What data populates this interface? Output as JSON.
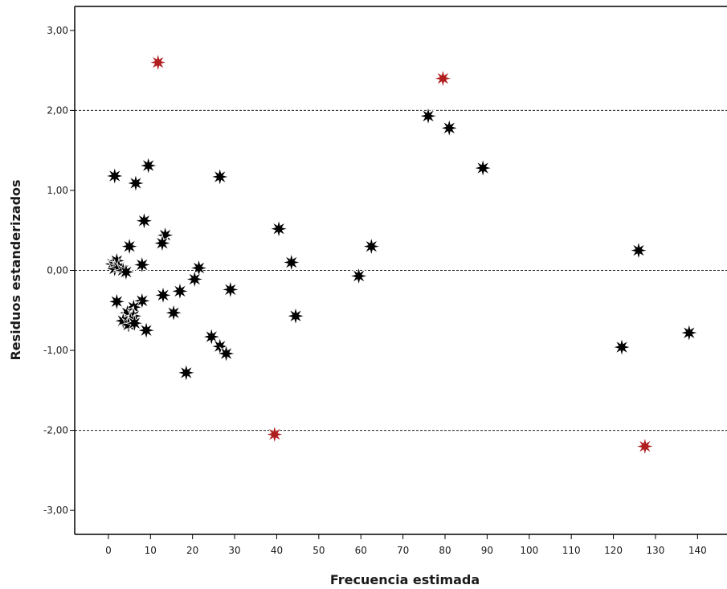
{
  "chart_data": {
    "type": "scatter",
    "title": "",
    "xlabel": "Frecuencia estimada",
    "ylabel": "Residuos estanderizados",
    "xlim": [
      -8,
      147
    ],
    "ylim": [
      -3.3,
      3.3
    ],
    "x_ticks": [
      0,
      10,
      20,
      30,
      40,
      50,
      60,
      70,
      80,
      90,
      100,
      110,
      120,
      130,
      140
    ],
    "x_tick_labels": [
      "0",
      "10",
      "20",
      "30",
      "40",
      "50",
      "60",
      "70",
      "80",
      "90",
      "100",
      "110",
      "120",
      "130",
      "140"
    ],
    "y_ticks": [
      -3,
      -2,
      -1,
      0,
      1,
      2,
      3
    ],
    "y_tick_labels": [
      "-3,00",
      "-2,00",
      "-1,00",
      "0,00",
      "1,00",
      "2,00",
      "3,00"
    ],
    "reference_lines": [
      2,
      0,
      -2
    ],
    "grid": false,
    "marker": "star",
    "colors": {
      "normal": "#000000",
      "outlier": "#b01e1e"
    },
    "series": [
      {
        "name": "",
        "color": "#000000",
        "points": [
          {
            "x": 1.5,
            "y": 1.18
          },
          {
            "x": 6.5,
            "y": 1.09
          },
          {
            "x": 9.5,
            "y": 1.31
          },
          {
            "x": 26.5,
            "y": 1.17
          },
          {
            "x": 8.5,
            "y": 0.62
          },
          {
            "x": 13.5,
            "y": 0.44
          },
          {
            "x": 12.8,
            "y": 0.34
          },
          {
            "x": 5.0,
            "y": 0.3
          },
          {
            "x": 1.0,
            "y": 0.08
          },
          {
            "x": 2.0,
            "y": 0.12
          },
          {
            "x": 1.5,
            "y": 0.02
          },
          {
            "x": 2.5,
            "y": 0.04
          },
          {
            "x": 3.5,
            "y": 0.0
          },
          {
            "x": 4.2,
            "y": -0.02
          },
          {
            "x": 8.0,
            "y": 0.07
          },
          {
            "x": 21.5,
            "y": 0.03
          },
          {
            "x": 20.5,
            "y": -0.11
          },
          {
            "x": 17.0,
            "y": -0.26
          },
          {
            "x": 13.0,
            "y": -0.31
          },
          {
            "x": 29.0,
            "y": -0.24
          },
          {
            "x": 2.0,
            "y": -0.39
          },
          {
            "x": 8.0,
            "y": -0.38
          },
          {
            "x": 6.0,
            "y": -0.46
          },
          {
            "x": 4.5,
            "y": -0.53
          },
          {
            "x": 6.0,
            "y": -0.57
          },
          {
            "x": 5.2,
            "y": -0.62
          },
          {
            "x": 3.5,
            "y": -0.63
          },
          {
            "x": 4.8,
            "y": -0.68
          },
          {
            "x": 6.2,
            "y": -0.66
          },
          {
            "x": 15.5,
            "y": -0.53
          },
          {
            "x": 9.0,
            "y": -0.75
          },
          {
            "x": 24.5,
            "y": -0.83
          },
          {
            "x": 26.5,
            "y": -0.95
          },
          {
            "x": 28.0,
            "y": -1.04
          },
          {
            "x": 18.5,
            "y": -1.28
          },
          {
            "x": 40.5,
            "y": 0.52
          },
          {
            "x": 43.5,
            "y": 0.1
          },
          {
            "x": 44.5,
            "y": -0.57
          },
          {
            "x": 59.5,
            "y": -0.07
          },
          {
            "x": 62.5,
            "y": 0.3
          },
          {
            "x": 76.0,
            "y": 1.93
          },
          {
            "x": 81.0,
            "y": 1.78
          },
          {
            "x": 89.0,
            "y": 1.28
          },
          {
            "x": 126.0,
            "y": 0.25
          },
          {
            "x": 122.0,
            "y": -0.96
          },
          {
            "x": 138.0,
            "y": -0.78
          }
        ]
      },
      {
        "name": "",
        "color": "#b01e1e",
        "points": [
          {
            "x": 11.8,
            "y": 2.6
          },
          {
            "x": 79.5,
            "y": 2.4
          },
          {
            "x": 39.5,
            "y": -2.05
          },
          {
            "x": 127.5,
            "y": -2.2
          }
        ]
      }
    ]
  }
}
